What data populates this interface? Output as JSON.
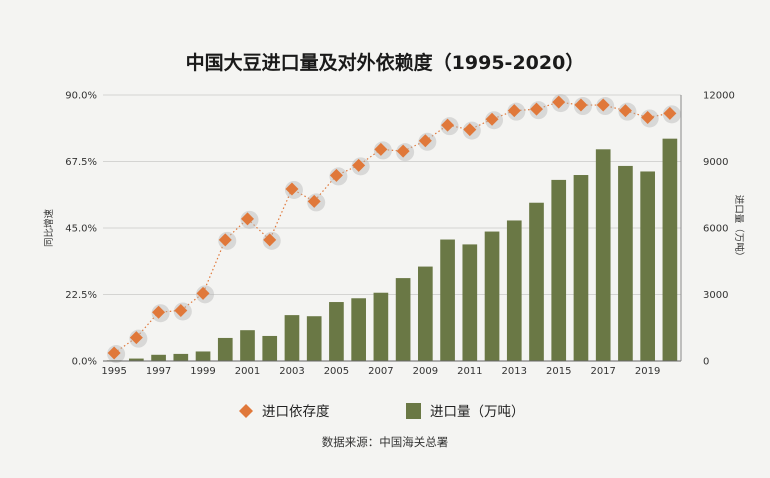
{
  "chart_data": {
    "type": "bar",
    "title": "中国大豆进口量及对外依赖度（1995-2020）",
    "x": [
      1995,
      1996,
      1997,
      1998,
      1999,
      2000,
      2001,
      2002,
      2003,
      2004,
      2005,
      2006,
      2007,
      2008,
      2009,
      2010,
      2011,
      2012,
      2013,
      2014,
      2015,
      2016,
      2017,
      2018,
      2019,
      2020
    ],
    "x_tick_labels": [
      "1995",
      "1997",
      "1999",
      "2001",
      "2003",
      "2005",
      "2007",
      "2009",
      "2011",
      "2013",
      "2015",
      "2017",
      "2019"
    ],
    "series": [
      {
        "name": "进口依存度",
        "type": "scatter",
        "axis": "left",
        "color": "#e0783a",
        "values": [
          2.7,
          7.9,
          16.5,
          17.1,
          22.9,
          41.0,
          48.1,
          41.0,
          58.2,
          54.0,
          62.8,
          66.2,
          71.6,
          71.0,
          74.5,
          79.8,
          78.3,
          81.8,
          84.7,
          85.2,
          87.6,
          86.6,
          86.6,
          84.7,
          82.4,
          83.8
        ]
      },
      {
        "name": "进口量（万吨）",
        "type": "bar",
        "axis": "right",
        "color": "#6a7845",
        "values": [
          30,
          110,
          280,
          320,
          430,
          1040,
          1390,
          1130,
          2070,
          2020,
          2660,
          2830,
          3080,
          3740,
          4260,
          5480,
          5260,
          5840,
          6340,
          7140,
          8170,
          8390,
          9550,
          8800,
          8550,
          10030
        ]
      }
    ],
    "y_left": {
      "label": "同比增速",
      "range": [
        0,
        90
      ],
      "ticks": [
        "0.0%",
        "22.5%",
        "45.0%",
        "67.5%",
        "90.0%"
      ]
    },
    "y_right": {
      "label": "进口量（万吨）",
      "range": [
        0,
        12000
      ],
      "ticks": [
        "0",
        "3000",
        "6000",
        "9000",
        "12000"
      ]
    },
    "grid": true,
    "legend_position": "bottom",
    "source": "数据来源：中国海关总署"
  }
}
